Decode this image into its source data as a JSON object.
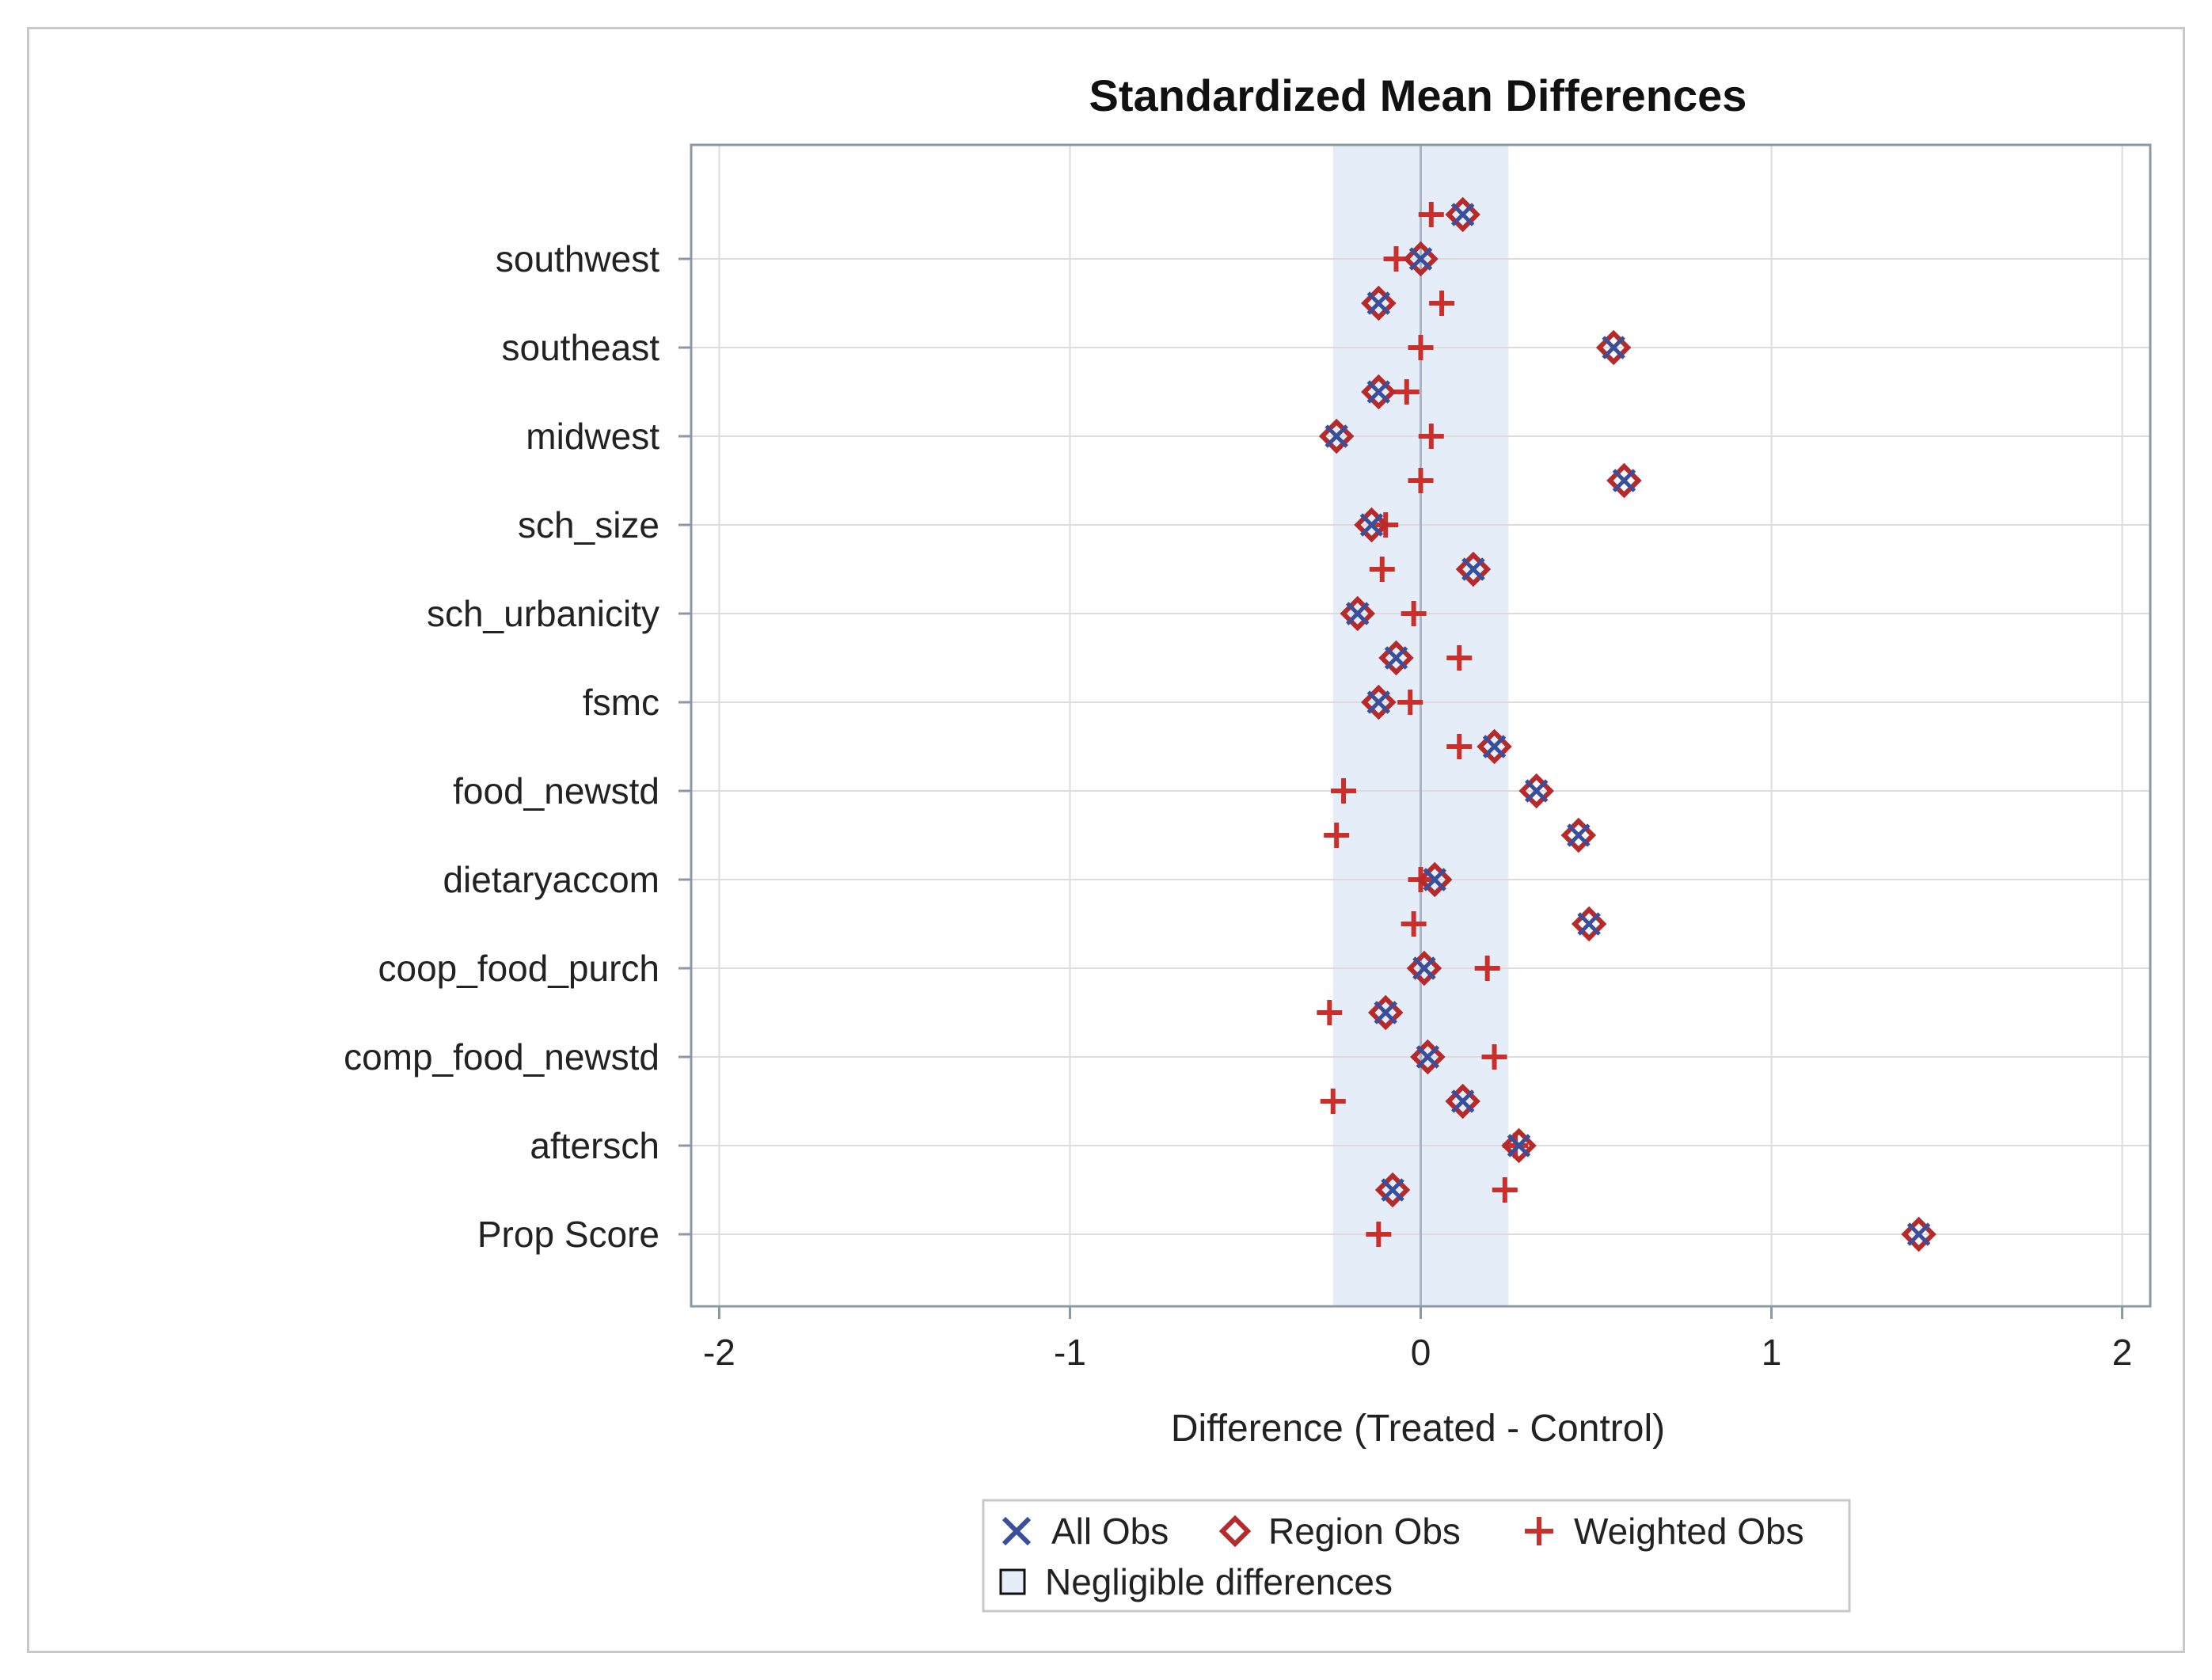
{
  "chart_data": {
    "type": "scatter",
    "title": "Standardized Mean Differences",
    "xlabel": "Difference (Treated - Control)",
    "ylabel": "",
    "xlim": [
      -2.08,
      2.08
    ],
    "xticks": [
      -2,
      -1,
      0,
      1,
      2
    ],
    "xtick_labels": [
      "-2",
      "-1",
      "0",
      "1",
      "2"
    ],
    "grid": true,
    "negligible_band": [
      -0.25,
      0.25
    ],
    "category_labels": [
      "southwest",
      "southeast",
      "midwest",
      "sch_size",
      "sch_urbanicity",
      "fsmc",
      "food_newstd",
      "dietaryaccom",
      "coop_food_purch",
      "comp_food_newstd",
      "aftersch",
      "Prop Score"
    ],
    "row_positions": [
      0.5,
      1,
      1.5,
      2,
      2.5,
      3,
      3.5,
      4,
      4.5,
      5,
      5.5,
      6,
      6.5,
      7,
      7.5,
      8,
      8.5,
      9,
      9.5,
      10,
      10.5,
      11,
      11.5,
      12,
      12.5
    ],
    "category_rows": [
      1,
      2,
      3,
      4,
      5,
      6,
      7,
      8,
      9,
      10,
      11,
      12
    ],
    "series": [
      {
        "name": "All Obs",
        "marker": "x",
        "color": "#3a4f9c",
        "values": [
          0.12,
          0.0,
          -0.12,
          0.55,
          -0.12,
          -0.24,
          0.58,
          -0.14,
          0.15,
          -0.18,
          -0.07,
          -0.12,
          0.21,
          0.33,
          0.45,
          0.04,
          0.48,
          0.01,
          -0.1,
          0.02,
          0.12,
          0.28,
          -0.08,
          1.42
        ]
      },
      {
        "name": "Region Obs",
        "marker": "diamond",
        "color": "#b52a2a",
        "values": [
          0.12,
          0.0,
          -0.12,
          0.55,
          -0.12,
          -0.24,
          0.58,
          -0.14,
          0.15,
          -0.18,
          -0.07,
          -0.12,
          0.21,
          0.33,
          0.45,
          0.04,
          0.48,
          0.01,
          -0.1,
          0.02,
          0.12,
          0.28,
          -0.08,
          1.42
        ]
      },
      {
        "name": "Weighted Obs",
        "marker": "plus",
        "color": "#c9302c",
        "values": [
          0.03,
          -0.07,
          0.06,
          0.0,
          -0.04,
          0.03,
          0.0,
          -0.1,
          -0.11,
          -0.02,
          0.11,
          -0.03,
          0.11,
          -0.22,
          -0.24,
          0.0,
          -0.02,
          0.19,
          -0.26,
          0.21,
          -0.25,
          0.27,
          0.24,
          -0.12
        ]
      }
    ],
    "legend": {
      "position": "bottom",
      "entries": [
        "All Obs",
        "Region Obs",
        "Weighted Obs"
      ],
      "band_label": "Negligible differences"
    }
  },
  "colors": {
    "band": "#e5eef8",
    "grid": "#dcdcdc",
    "axis": "#8a9aa3",
    "zero_line": "#a8b4c8",
    "all_obs": "#3a4f9c",
    "region_obs": "#b52a2a",
    "weighted_obs": "#c9302c"
  }
}
